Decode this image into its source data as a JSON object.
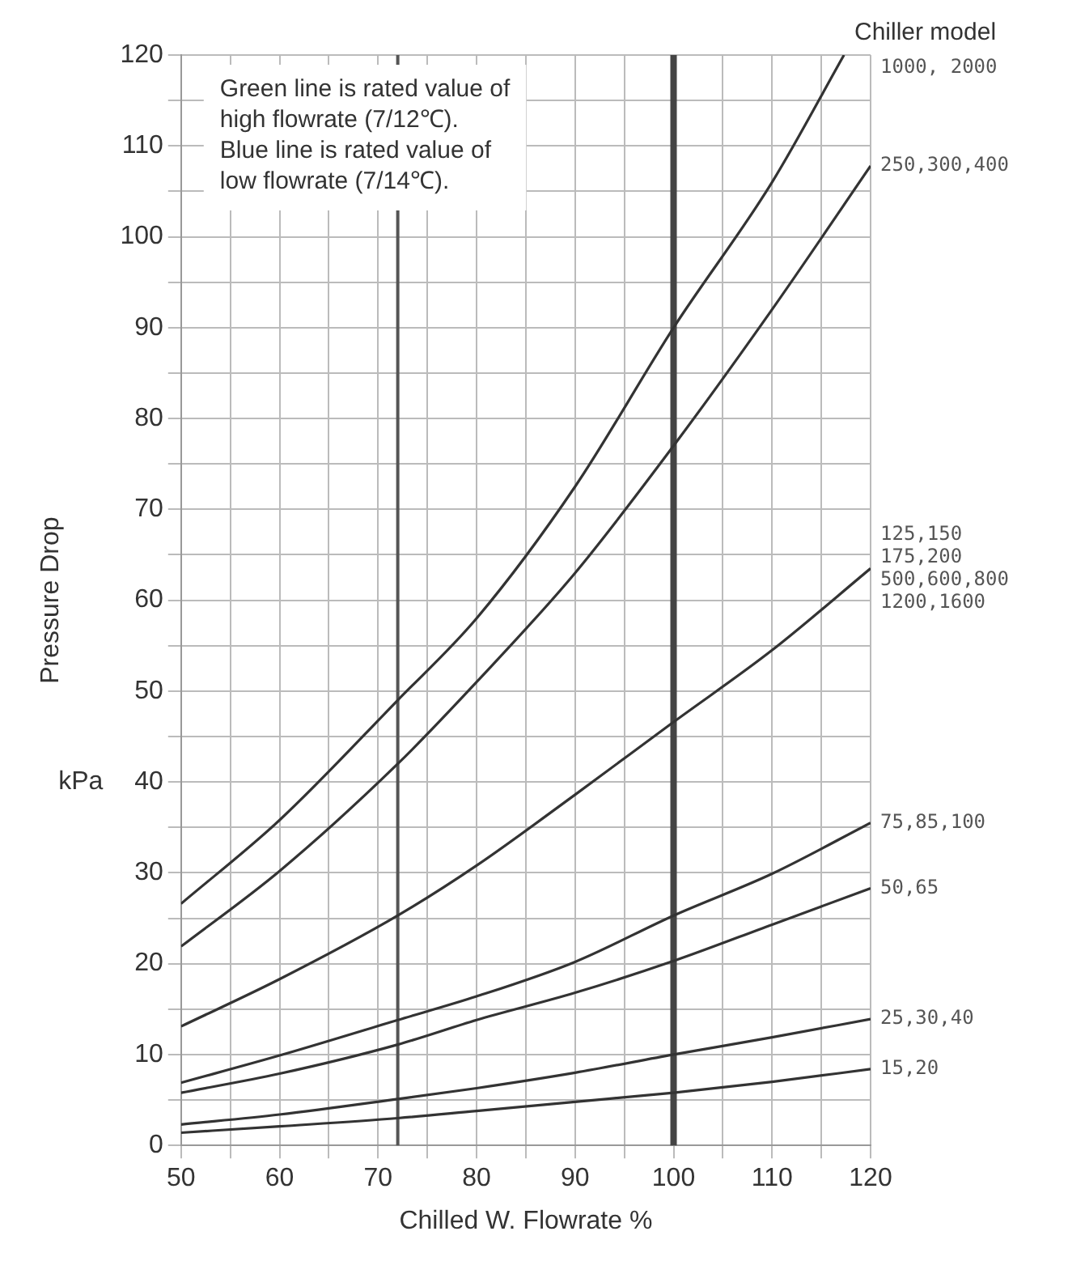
{
  "chart_data": {
    "type": "line",
    "xlabel": "Chilled W. Flowrate %",
    "ylabel": "Pressure Drop",
    "legend_title": "Chiller model",
    "annotations": [
      "Green line is rated value of\nhigh flowrate (7/12℃).\nBlue line is rated value of\nlow flowrate (7/14℃).",
      "kPa"
    ],
    "xlim": [
      50,
      120
    ],
    "xticks": [
      50,
      {
        "value": 55,
        "label": null
      },
      60,
      {
        "value": 65,
        "label": null
      },
      70,
      {
        "value": 75,
        "label": null
      },
      80,
      {
        "value": 85,
        "label": null
      },
      90,
      {
        "value": 95,
        "label": null
      },
      100,
      {
        "value": 105,
        "label": null
      },
      110,
      {
        "value": 115,
        "label": null
      },
      120
    ],
    "ylim": [
      0,
      120
    ],
    "yticks": [
      0,
      {
        "value": 5,
        "label": null
      },
      10,
      {
        "value": 15,
        "label": null
      },
      20,
      {
        "value": 25,
        "label": null
      },
      30,
      {
        "value": 35,
        "label": null
      },
      40,
      {
        "value": 45,
        "label": null
      },
      50,
      {
        "value": 55,
        "label": null
      },
      60,
      {
        "value": 65,
        "label": null
      },
      70,
      {
        "value": 75,
        "label": null
      },
      80,
      {
        "value": 85,
        "label": null
      },
      90,
      {
        "value": 95,
        "label": null
      },
      100,
      {
        "value": 105,
        "label": null
      },
      110,
      {
        "value": 115,
        "label": null
      },
      120
    ],
    "grid": true,
    "legend": false,
    "marker": "none",
    "line_style": "solid",
    "ref_lines": [
      {
        "axis": "x",
        "value": 72,
        "color": "#555555"
      },
      {
        "axis": "x",
        "value": 100,
        "color": "#444444"
      }
    ],
    "series": [
      {
        "name": "1000, 2000",
        "color": "#333333",
        "x": [
          50,
          60,
          72,
          80,
          90,
          100,
          110,
          117.3
        ],
        "values": [
          26.6,
          35.8,
          49,
          58,
          72.5,
          90,
          106,
          120
        ]
      },
      {
        "name": "250,300,400",
        "color": "#333333",
        "x": [
          50,
          60,
          72,
          80,
          90,
          100,
          110,
          120
        ],
        "values": [
          21.9,
          30.2,
          42,
          51,
          63,
          77,
          92,
          107.8
        ]
      },
      {
        "name": "125,150\n175,200\n500,600,800\n1200,1600",
        "color": "#333333",
        "x": [
          50,
          60,
          72,
          80,
          90,
          100,
          110,
          120
        ],
        "values": [
          13.1,
          18.3,
          25.3,
          30.8,
          38.6,
          46.6,
          54.5,
          63.5
        ]
      },
      {
        "name": "75,85,100",
        "color": "#333333",
        "x": [
          50,
          60,
          72,
          80,
          90,
          100,
          110,
          120
        ],
        "values": [
          6.9,
          9.9,
          13.8,
          16.4,
          20.2,
          25.3,
          29.9,
          35.5
        ]
      },
      {
        "name": "50,65",
        "color": "#333333",
        "x": [
          50,
          60,
          72,
          80,
          90,
          100,
          110,
          120
        ],
        "values": [
          5.8,
          7.9,
          11.1,
          13.8,
          16.8,
          20.3,
          24.3,
          28.3
        ]
      },
      {
        "name": "25,30,40",
        "color": "#333333",
        "x": [
          50,
          60,
          72,
          80,
          90,
          100,
          110,
          120
        ],
        "values": [
          2.3,
          3.4,
          5.1,
          6.3,
          8,
          10,
          11.9,
          13.9
        ]
      },
      {
        "name": "15,20",
        "color": "#333333",
        "x": [
          50,
          60,
          72,
          80,
          90,
          100,
          110,
          120
        ],
        "values": [
          1.4,
          2.1,
          3,
          3.8,
          4.8,
          5.8,
          7,
          8.4
        ]
      }
    ]
  }
}
